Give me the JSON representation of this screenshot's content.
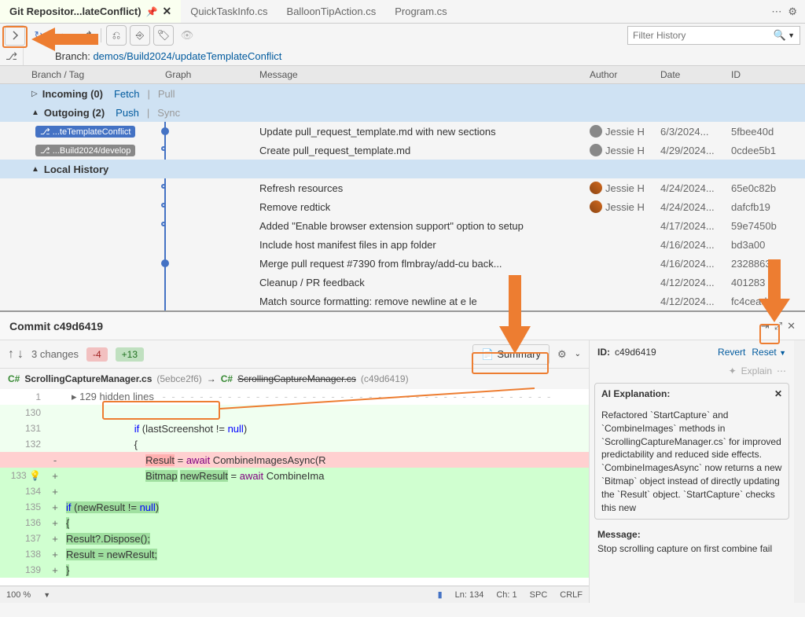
{
  "colors": {
    "accent_blue": "#4472c4",
    "link": "#005a9e",
    "orange": "#ed7d31",
    "added_bg": "#d0ffd0",
    "removed_bg": "#ffd0d0",
    "section_bg": "#cfe2f3"
  },
  "tabs": {
    "active": "Git Repositor...lateConflict)",
    "others": [
      "QuickTaskInfo.cs",
      "BalloonTipAction.cs",
      "Program.cs"
    ]
  },
  "toolbar": {
    "filter_placeholder": "Filter History"
  },
  "branch": {
    "label": "Branch:",
    "name": "demos/Build2024/updateTemplateConflict"
  },
  "columns": {
    "branch": "Branch / Tag",
    "graph": "Graph",
    "message": "Message",
    "author": "Author",
    "date": "Date",
    "id": "ID"
  },
  "sections": {
    "incoming": {
      "label": "Incoming (0)",
      "fetch": "Fetch",
      "pull": "Pull"
    },
    "outgoing": {
      "label": "Outgoing (2)",
      "push": "Push",
      "sync": "Sync"
    },
    "local": {
      "label": "Local History"
    }
  },
  "outgoing_commits": [
    {
      "tag": "...teTemplateConflict",
      "tag_color": "blue",
      "msg": "Update pull_request_template.md with new sections",
      "author": "Jessie H",
      "date": "6/3/2024...",
      "id": "5fbee40d",
      "dot": "solid"
    },
    {
      "tag": "...Build2024/develop",
      "tag_color": "gray",
      "msg": "Create pull_request_template.md",
      "author": "Jessie H",
      "date": "4/29/2024...",
      "id": "0cdee5b1",
      "dot": "hollow"
    }
  ],
  "local_commits": [
    {
      "msg": "Refresh resources",
      "author": "Jessie H",
      "date": "4/24/2024...",
      "id": "65e0c82b",
      "avatar": "photo"
    },
    {
      "msg": "Remove redtick",
      "author": "Jessie H",
      "date": "4/24/2024...",
      "id": "dafcfb19",
      "avatar": "photo"
    },
    {
      "msg": "Added \"Enable browser extension support\" option to setup",
      "author": "",
      "date": "4/17/2024...",
      "id": "59e7450b"
    },
    {
      "msg": "Include host manifest files in app folder",
      "author": "",
      "date": "4/16/2024...",
      "id": "bd3a00"
    },
    {
      "msg": "Merge pull request #7390 from flmbray/add-cu       back...",
      "author": "",
      "date": "4/16/2024...",
      "id": "2328863"
    },
    {
      "msg": "Cleanup / PR feedback",
      "author": "",
      "date": "4/12/2024...",
      "id": "401283"
    },
    {
      "msg": "Match source formatting: remove newline at e          le",
      "author": "",
      "date": "4/12/2024...",
      "id": "fc4cead4"
    }
  ],
  "commit_detail": {
    "title": "Commit c49d6419",
    "changes": "3 changes",
    "removed": "-4",
    "added": "+13",
    "summary_btn": "Summary",
    "file_left": "ScrollingCaptureManager.cs",
    "file_left_rev": "(5ebce2f6)",
    "file_right": "ScrollingCaptureManager.cs",
    "file_right_rev": "(c49d6419)",
    "hidden_lines": "129 hidden lines"
  },
  "code_lines": [
    {
      "n": "1",
      "type": "hidden"
    },
    {
      "n": "130",
      "type": "ctx",
      "text": ""
    },
    {
      "n": "131",
      "type": "ctx",
      "text": "                        if (lastScreenshot != null)",
      "kw": [
        [
          "if",
          "blue"
        ],
        [
          "null",
          "blue"
        ]
      ]
    },
    {
      "n": "132",
      "type": "ctx",
      "text": "                        {"
    },
    {
      "n": "",
      "type": "rem",
      "g": "-",
      "text": "                            Result = await CombineImagesAsync(R",
      "hl": [
        [
          "Result",
          "red"
        ]
      ],
      "kw": [
        [
          "await",
          "purple"
        ]
      ]
    },
    {
      "n": "133",
      "type": "add",
      "g": "+",
      "text": "                            Bitmap newResult = await CombineIma",
      "hl": [
        [
          "Bitmap",
          "green"
        ],
        [
          "newResult",
          "green"
        ]
      ],
      "kw": [
        [
          "await",
          "purple"
        ]
      ],
      "bulb": true
    },
    {
      "n": "134",
      "type": "add",
      "g": "+",
      "text": ""
    },
    {
      "n": "135",
      "type": "add",
      "g": "+",
      "text": "                            if (newResult != null)",
      "hl_all": true,
      "kw": [
        [
          "if",
          "blue"
        ],
        [
          "null",
          "blue"
        ]
      ]
    },
    {
      "n": "136",
      "type": "add",
      "g": "+",
      "text": "                            {",
      "hl_all": true
    },
    {
      "n": "137",
      "type": "add",
      "g": "+",
      "text": "                                Result?.Dispose();",
      "hl_all": true
    },
    {
      "n": "138",
      "type": "add",
      "g": "+",
      "text": "                                Result = newResult;",
      "hl_all": true
    },
    {
      "n": "139",
      "type": "add",
      "g": "+",
      "text": "                            }",
      "hl_all": true
    }
  ],
  "info": {
    "id_label": "ID:",
    "id": "c49d6419",
    "revert": "Revert",
    "reset": "Reset",
    "explain": "Explain",
    "ai_title": "AI Explanation:",
    "ai_body": "Refactored `StartCapture` and `CombineImages` methods in `ScrollingCaptureManager.cs` for improved predictability and reduced side effects. `CombineImagesAsync` now returns a new `Bitmap` object instead of directly updating the `Result` object. `StartCapture` checks this new",
    "msg_label": "Message:",
    "msg_body": "Stop scrolling capture on first combine fail"
  },
  "status": {
    "zoom": "100 %",
    "ln": "Ln: 134",
    "ch": "Ch: 1",
    "spc": "SPC",
    "crlf": "CRLF"
  }
}
